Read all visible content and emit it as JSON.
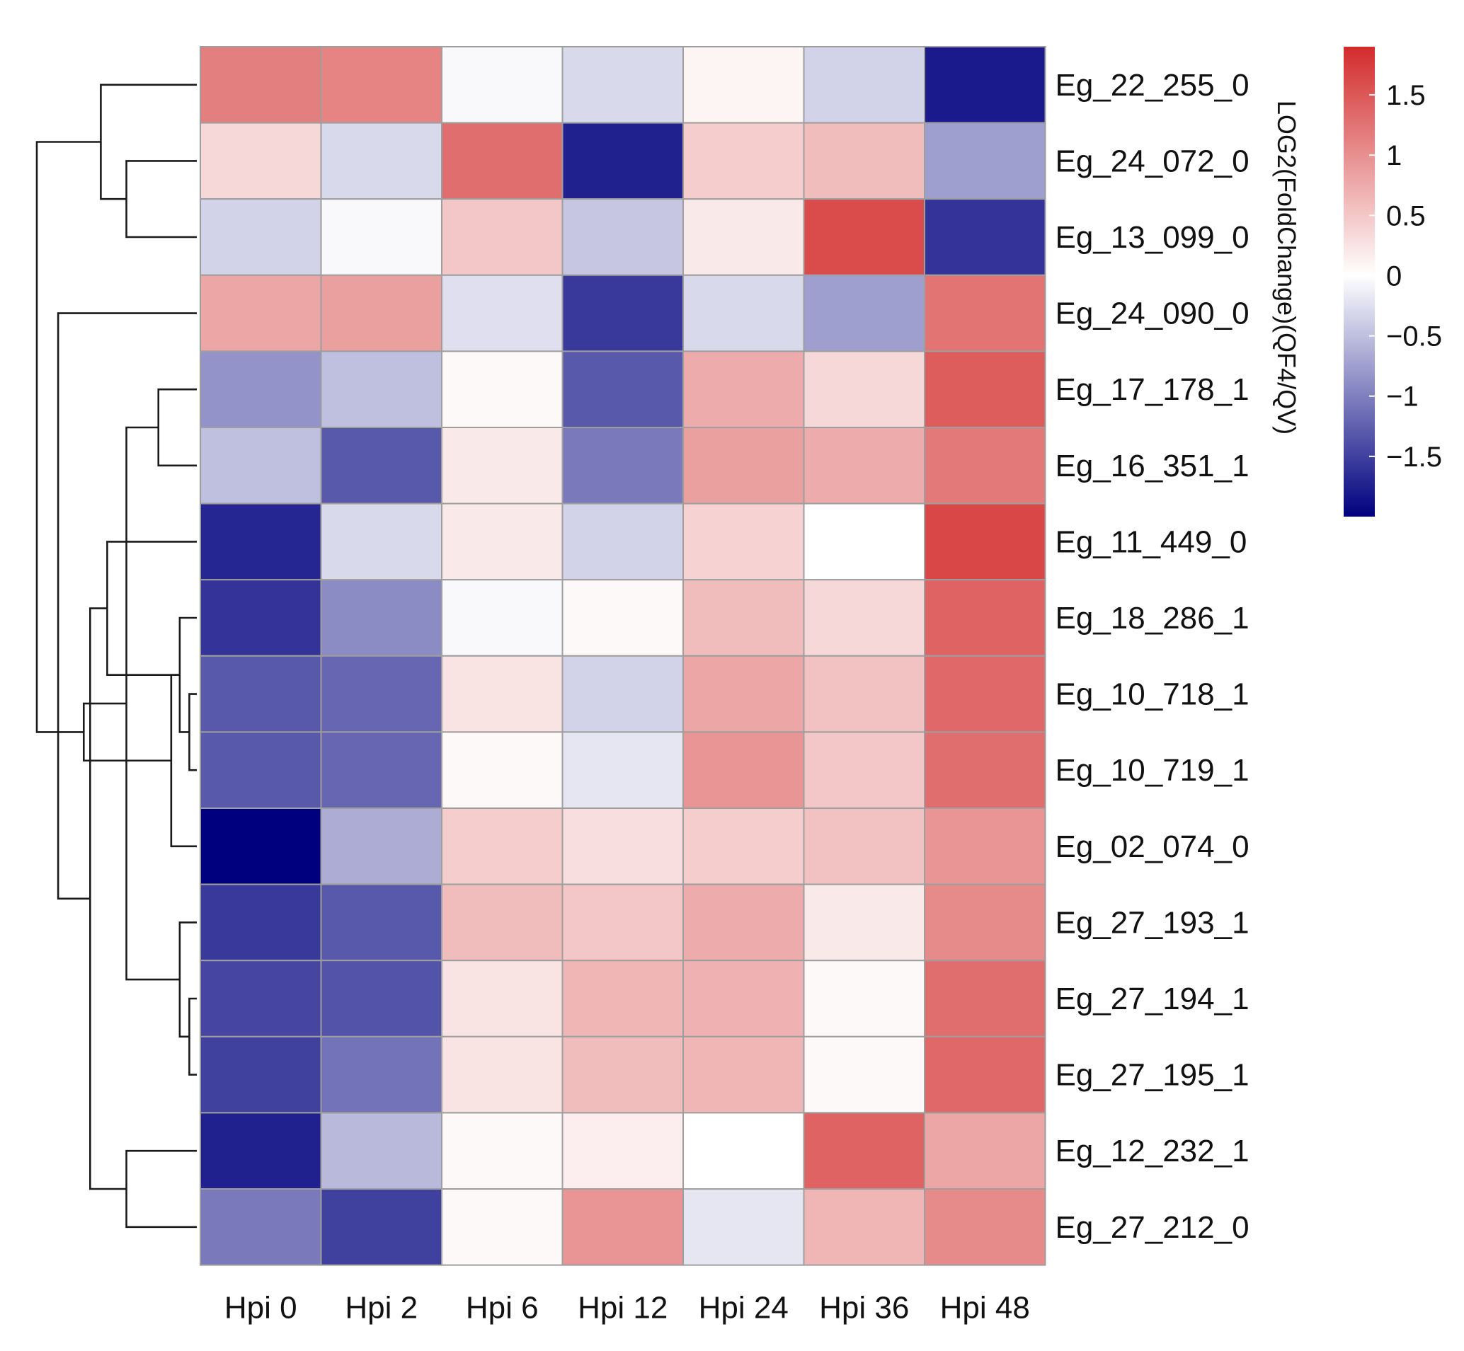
{
  "chart_data": {
    "type": "heatmap",
    "title": "",
    "xlabel": "",
    "ylabel": "",
    "columns": [
      "Hpi 0",
      "Hpi 2",
      "Hpi 6",
      "Hpi 12",
      "Hpi 24",
      "Hpi 36",
      "Hpi 48"
    ],
    "rows": [
      "Eg_22_255_0",
      "Eg_24_072_0",
      "Eg_13_099_0",
      "Eg_24_090_0",
      "Eg_17_178_1",
      "Eg_16_351_1",
      "Eg_11_449_0",
      "Eg_18_286_1",
      "Eg_10_718_1",
      "Eg_10_719_1",
      "Eg_02_074_0",
      "Eg_27_193_1",
      "Eg_27_194_1",
      "Eg_27_195_1",
      "Eg_12_232_1",
      "Eg_27_212_0"
    ],
    "values": [
      [
        1.15,
        1.1,
        -0.05,
        -0.3,
        0.1,
        -0.35,
        -1.8
      ],
      [
        0.35,
        -0.3,
        1.3,
        -1.75,
        0.45,
        0.6,
        -0.75
      ],
      [
        -0.35,
        -0.05,
        0.5,
        -0.45,
        0.2,
        1.6,
        -1.6
      ],
      [
        0.8,
        0.85,
        -0.25,
        -1.55,
        -0.3,
        -0.75,
        1.25
      ],
      [
        -0.85,
        -0.5,
        0.05,
        -1.3,
        0.75,
        0.35,
        1.45
      ],
      [
        -0.5,
        -1.3,
        0.2,
        -1.05,
        0.85,
        0.75,
        1.2
      ],
      [
        -1.7,
        -0.3,
        0.2,
        -0.35,
        0.4,
        0.0,
        1.65
      ],
      [
        -1.6,
        -0.9,
        -0.05,
        0.05,
        0.6,
        0.35,
        1.4
      ],
      [
        -1.3,
        -1.2,
        0.25,
        -0.35,
        0.8,
        0.55,
        1.35
      ],
      [
        -1.3,
        -1.2,
        0.05,
        -0.2,
        0.95,
        0.5,
        1.3
      ],
      [
        -2.0,
        -0.65,
        0.45,
        0.3,
        0.45,
        0.55,
        0.95
      ],
      [
        -1.55,
        -1.3,
        0.6,
        0.5,
        0.75,
        0.2,
        1.05
      ],
      [
        -1.45,
        -1.35,
        0.25,
        0.65,
        0.7,
        0.05,
        1.3
      ],
      [
        -1.5,
        -1.1,
        0.25,
        0.6,
        0.65,
        0.05,
        1.35
      ],
      [
        -1.75,
        -0.55,
        0.05,
        0.15,
        0.0,
        1.4,
        0.8
      ],
      [
        -1.05,
        -1.5,
        0.05,
        0.95,
        -0.2,
        0.65,
        1.05
      ]
    ],
    "colorbar": {
      "label": "LOG2(FoldChange)(QF4/QV)",
      "range": [
        -2.0,
        1.9
      ],
      "ticks": [
        1.5,
        1,
        0.5,
        0,
        -0.5,
        -1,
        -1.5
      ],
      "tick_labels": [
        "1.5",
        "1",
        "0.5",
        "0",
        "−0.5",
        "−1",
        "−1.5"
      ],
      "colors": {
        "low": "#00007f",
        "mid": "#ffffff",
        "high": "#d32b2b"
      }
    },
    "cell_border_color": "#9e9e9e",
    "dendrogram": {
      "side": "left",
      "merges": [
        [
          8,
          9,
          0.035
        ],
        [
          12,
          13,
          0.035
        ],
        [
          7,
          16,
          0.08
        ],
        [
          11,
          17,
          0.08
        ],
        [
          4,
          5,
          0.18
        ],
        [
          18,
          10,
          0.12
        ],
        [
          1,
          2,
          0.33
        ],
        [
          14,
          15,
          0.33
        ],
        [
          20,
          19,
          0.33
        ],
        [
          6,
          18,
          0.42
        ],
        [
          0,
          22,
          0.45
        ],
        [
          25,
          23,
          0.5
        ],
        [
          21,
          24,
          0.53
        ],
        [
          3,
          27,
          0.65
        ],
        [
          26,
          28,
          0.75
        ]
      ]
    }
  }
}
